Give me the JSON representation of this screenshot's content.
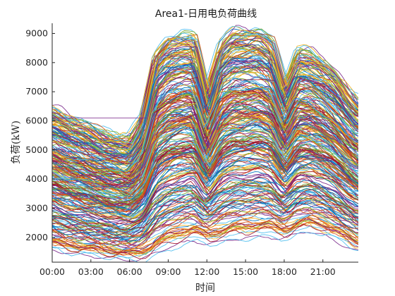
{
  "chart_data": {
    "type": "line",
    "title": "Area1-日用电负荷曲线",
    "xlabel": "时间",
    "ylabel": "负荷(kW)",
    "x_unit": "hour of day",
    "xlim": [
      0,
      23.75
    ],
    "ylim": [
      1150,
      9350
    ],
    "xticks": [
      0,
      3,
      6,
      9,
      12,
      15,
      18,
      21
    ],
    "xtick_labels": [
      "00:00",
      "03:00",
      "06:00",
      "09:00",
      "12:00",
      "15:00",
      "18:00",
      "21:00"
    ],
    "yticks": [
      2000,
      3000,
      4000,
      5000,
      6000,
      7000,
      8000,
      9000
    ],
    "ytick_labels": [
      "2000",
      "3000",
      "4000",
      "5000",
      "6000",
      "7000",
      "8000",
      "9000"
    ],
    "grid": false,
    "legend": "none",
    "series_count": 300,
    "colors": [
      "#0072BD",
      "#D95319",
      "#EDB120",
      "#7E2F8E",
      "#77AC30",
      "#4DBEEE",
      "#A2142F"
    ],
    "x": [
      0,
      1,
      2,
      3,
      4,
      5,
      6,
      7,
      8,
      9,
      10,
      11,
      12,
      13,
      14,
      15,
      16,
      17,
      18,
      19,
      20,
      21,
      22,
      23,
      23.75
    ],
    "envelope": [
      {
        "name": "max",
        "values": [
          6450,
          6250,
          6050,
          5850,
          5650,
          5450,
          5400,
          6200,
          8400,
          8950,
          9050,
          9000,
          7100,
          8700,
          9150,
          9200,
          9200,
          8900,
          7350,
          8450,
          8400,
          8100,
          7700,
          7100,
          6700
        ]
      },
      {
        "name": "min",
        "values": [
          1500,
          1400,
          1350,
          1300,
          1250,
          1200,
          1150,
          1150,
          1300,
          1500,
          1650,
          1750,
          1700,
          1700,
          1800,
          1850,
          1900,
          1900,
          1850,
          2000,
          2100,
          2000,
          1800,
          1600,
          1450
        ]
      }
    ]
  }
}
